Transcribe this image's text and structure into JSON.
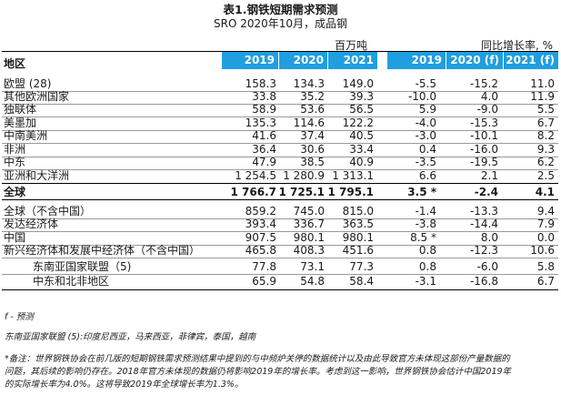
{
  "title": "表1.钢铁短期需求预测",
  "subtitle": "SRO 2020年10月，成品钢",
  "units": {
    "left": "百万吨",
    "right": "同比增长率, %"
  },
  "header": {
    "region": "地区",
    "cols": [
      "2019",
      "2020 (f)",
      "2021 (f)",
      "2019",
      "2020 (f)",
      "2021 (f)"
    ]
  },
  "rows": [
    {
      "label": "欧盟 (28)",
      "v": [
        "158.3",
        "134.3",
        "149.0",
        "-5.5",
        "-15.2",
        "11.0"
      ]
    },
    {
      "label": "其他欧洲国家",
      "v": [
        "33.8",
        "35.2",
        "39.3",
        "-10.0",
        "4.0",
        "11.9"
      ]
    },
    {
      "label": "独联体",
      "v": [
        "58.9",
        "53.6",
        "56.5",
        "5.9",
        "-9.0",
        "5.5"
      ]
    },
    {
      "label": "美墨加",
      "v": [
        "135.3",
        "114.6",
        "122.2",
        "-4.0",
        "-15.3",
        "6.7"
      ]
    },
    {
      "label": "中南美洲",
      "v": [
        "41.6",
        "37.4",
        "40.5",
        "-3.0",
        "-10.1",
        "8.2"
      ]
    },
    {
      "label": "非洲",
      "v": [
        "36.4",
        "30.6",
        "33.4",
        "0.4",
        "-16.0",
        "9.3"
      ]
    },
    {
      "label": "中东",
      "v": [
        "47.9",
        "38.5",
        "40.9",
        "-3.5",
        "-19.5",
        "6.2"
      ]
    },
    {
      "label": "亚洲和大洋洲",
      "v": [
        "1 254.5",
        "1 280.9",
        "1 313.1",
        "6.6",
        "2.1",
        "2.5"
      ]
    },
    {
      "label": "全球",
      "v": [
        "1 766.7",
        "1 725.1",
        "1 795.1",
        "3.5 *",
        "-2.4",
        "4.1"
      ],
      "bold": true
    },
    {
      "label": "全球（不含中国）",
      "v": [
        "859.2",
        "745.0",
        "815.0",
        "-1.4",
        "-13.3",
        "9.4"
      ]
    },
    {
      "label": "发达经济体",
      "v": [
        "393.4",
        "336.7",
        "363.5",
        "-3.8",
        "-14.4",
        "7.9"
      ]
    },
    {
      "label": "中国",
      "v": [
        "907.5",
        "980.1",
        "980.1",
        "8.5 *",
        "8.0",
        "0.0"
      ]
    },
    {
      "label": "新兴经济体和发展中经济体（不含中国）",
      "v": [
        "465.8",
        "408.3",
        "451.6",
        "0.8",
        "-12.3",
        "10.6"
      ]
    },
    {
      "label": "东南亚国家联盟（5)",
      "v": [
        "77.8",
        "73.1",
        "77.3",
        "0.8",
        "-6.0",
        "5.8"
      ],
      "indent": true
    },
    {
      "label": "中东和北非地区",
      "v": [
        "65.9",
        "54.8",
        "58.4",
        "-3.1",
        "-16.8",
        "6.7"
      ],
      "indent": true
    }
  ],
  "footnotes": {
    "forecast": "f - 预测",
    "asean": "东南亚国家联盟 (5):印度尼西亚，马来西亚，菲律宾，泰国，越南",
    "note1": "*备注：世界钢铁协会在前几版的短期钢铁需求预测结果中提到的与中频炉关停的数据统计以及由此导致官方未体现这部份产量数据的",
    "note2": "问题，其后续的影响仍存在。2018年官方未体现的数据仍将影响2019年的增长率。考虑到这一影响，世界钢铁协会估计中国2019年",
    "note3": "的实际增长率为4.0%。这将导致2019年全球增长率为1.3%。"
  }
}
